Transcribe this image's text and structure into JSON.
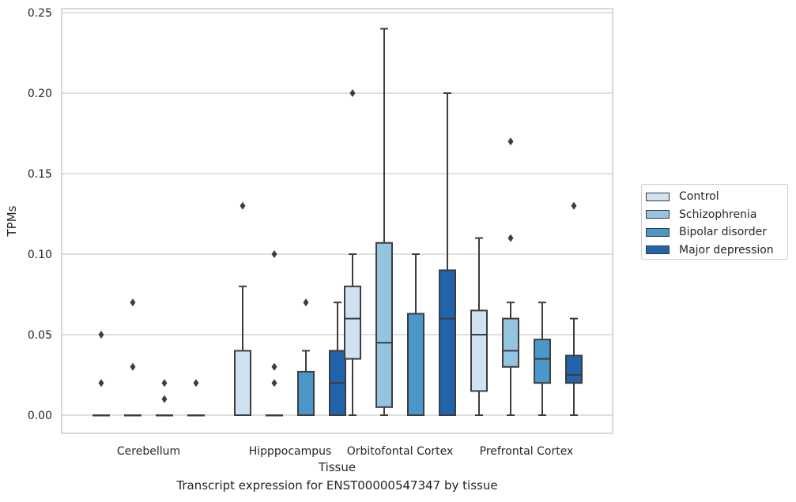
{
  "caption": "Transcript expression for ENST00000547347 by tissue",
  "chart_data": {
    "type": "box",
    "title": "",
    "xlabel": "Tissue",
    "ylabel": "TPMs",
    "ylim": [
      -0.012,
      0.252
    ],
    "yticks": [
      "0.00",
      "0.05",
      "0.10",
      "0.15",
      "0.20",
      "0.25"
    ],
    "ytick_values": [
      0,
      0.05,
      0.1,
      0.15,
      0.2,
      0.25
    ],
    "categories": [
      "Cerebellum",
      "Hipppocampus",
      "Orbitofontal Cortex",
      "Prefrontal Cortex"
    ],
    "grid": "horizontal",
    "legend_position": "right",
    "series": [
      {
        "name": "Control",
        "color": "#d0e1f2",
        "boxes": [
          {
            "whislo": 0,
            "q1": 0,
            "med": 0,
            "q3": 0,
            "whishi": 0,
            "fliers": [
              0.05,
              0.02
            ]
          },
          {
            "whislo": 0,
            "q1": 0,
            "med": 0,
            "q3": 0.04,
            "whishi": 0.08,
            "fliers": [
              0.13
            ]
          },
          {
            "whislo": 0,
            "q1": 0.035,
            "med": 0.06,
            "q3": 0.08,
            "whishi": 0.1,
            "fliers": [
              0.2
            ]
          },
          {
            "whislo": 0,
            "q1": 0.015,
            "med": 0.05,
            "q3": 0.065,
            "whishi": 0.11,
            "fliers": []
          }
        ]
      },
      {
        "name": "Schizophrenia",
        "color": "#94c4df",
        "boxes": [
          {
            "whislo": 0,
            "q1": 0,
            "med": 0,
            "q3": 0,
            "whishi": 0,
            "fliers": [
              0.07,
              0.03
            ]
          },
          {
            "whislo": 0,
            "q1": 0,
            "med": 0,
            "q3": 0,
            "whishi": 0,
            "fliers": [
              0.1,
              0.03,
              0.02
            ]
          },
          {
            "whislo": 0,
            "q1": 0.005,
            "med": 0.045,
            "q3": 0.107,
            "whishi": 0.24,
            "fliers": []
          },
          {
            "whislo": 0,
            "q1": 0.03,
            "med": 0.04,
            "q3": 0.06,
            "whishi": 0.07,
            "fliers": [
              0.17,
              0.11
            ]
          }
        ]
      },
      {
        "name": "Bipolar disorder",
        "color": "#4a98c9",
        "boxes": [
          {
            "whislo": 0,
            "q1": 0,
            "med": 0,
            "q3": 0,
            "whishi": 0,
            "fliers": [
              0.02,
              0.01
            ]
          },
          {
            "whislo": 0,
            "q1": 0,
            "med": 0,
            "q3": 0.027,
            "whishi": 0.04,
            "fliers": [
              0.07
            ]
          },
          {
            "whislo": 0,
            "q1": 0,
            "med": 0,
            "q3": 0.063,
            "whishi": 0.1,
            "fliers": []
          },
          {
            "whislo": 0,
            "q1": 0.02,
            "med": 0.035,
            "q3": 0.047,
            "whishi": 0.07,
            "fliers": []
          }
        ]
      },
      {
        "name": "Major depression",
        "color": "#2164ab",
        "boxes": [
          {
            "whislo": 0,
            "q1": 0,
            "med": 0,
            "q3": 0,
            "whishi": 0,
            "fliers": [
              0.02
            ]
          },
          {
            "whislo": 0,
            "q1": 0,
            "med": 0.02,
            "q3": 0.04,
            "whishi": 0.07,
            "fliers": []
          },
          {
            "whislo": 0,
            "q1": 0,
            "med": 0.06,
            "q3": 0.09,
            "whishi": 0.2,
            "fliers": []
          },
          {
            "whislo": 0,
            "q1": 0.02,
            "med": 0.025,
            "q3": 0.037,
            "whishi": 0.06,
            "fliers": [
              0.13
            ]
          }
        ]
      }
    ]
  }
}
